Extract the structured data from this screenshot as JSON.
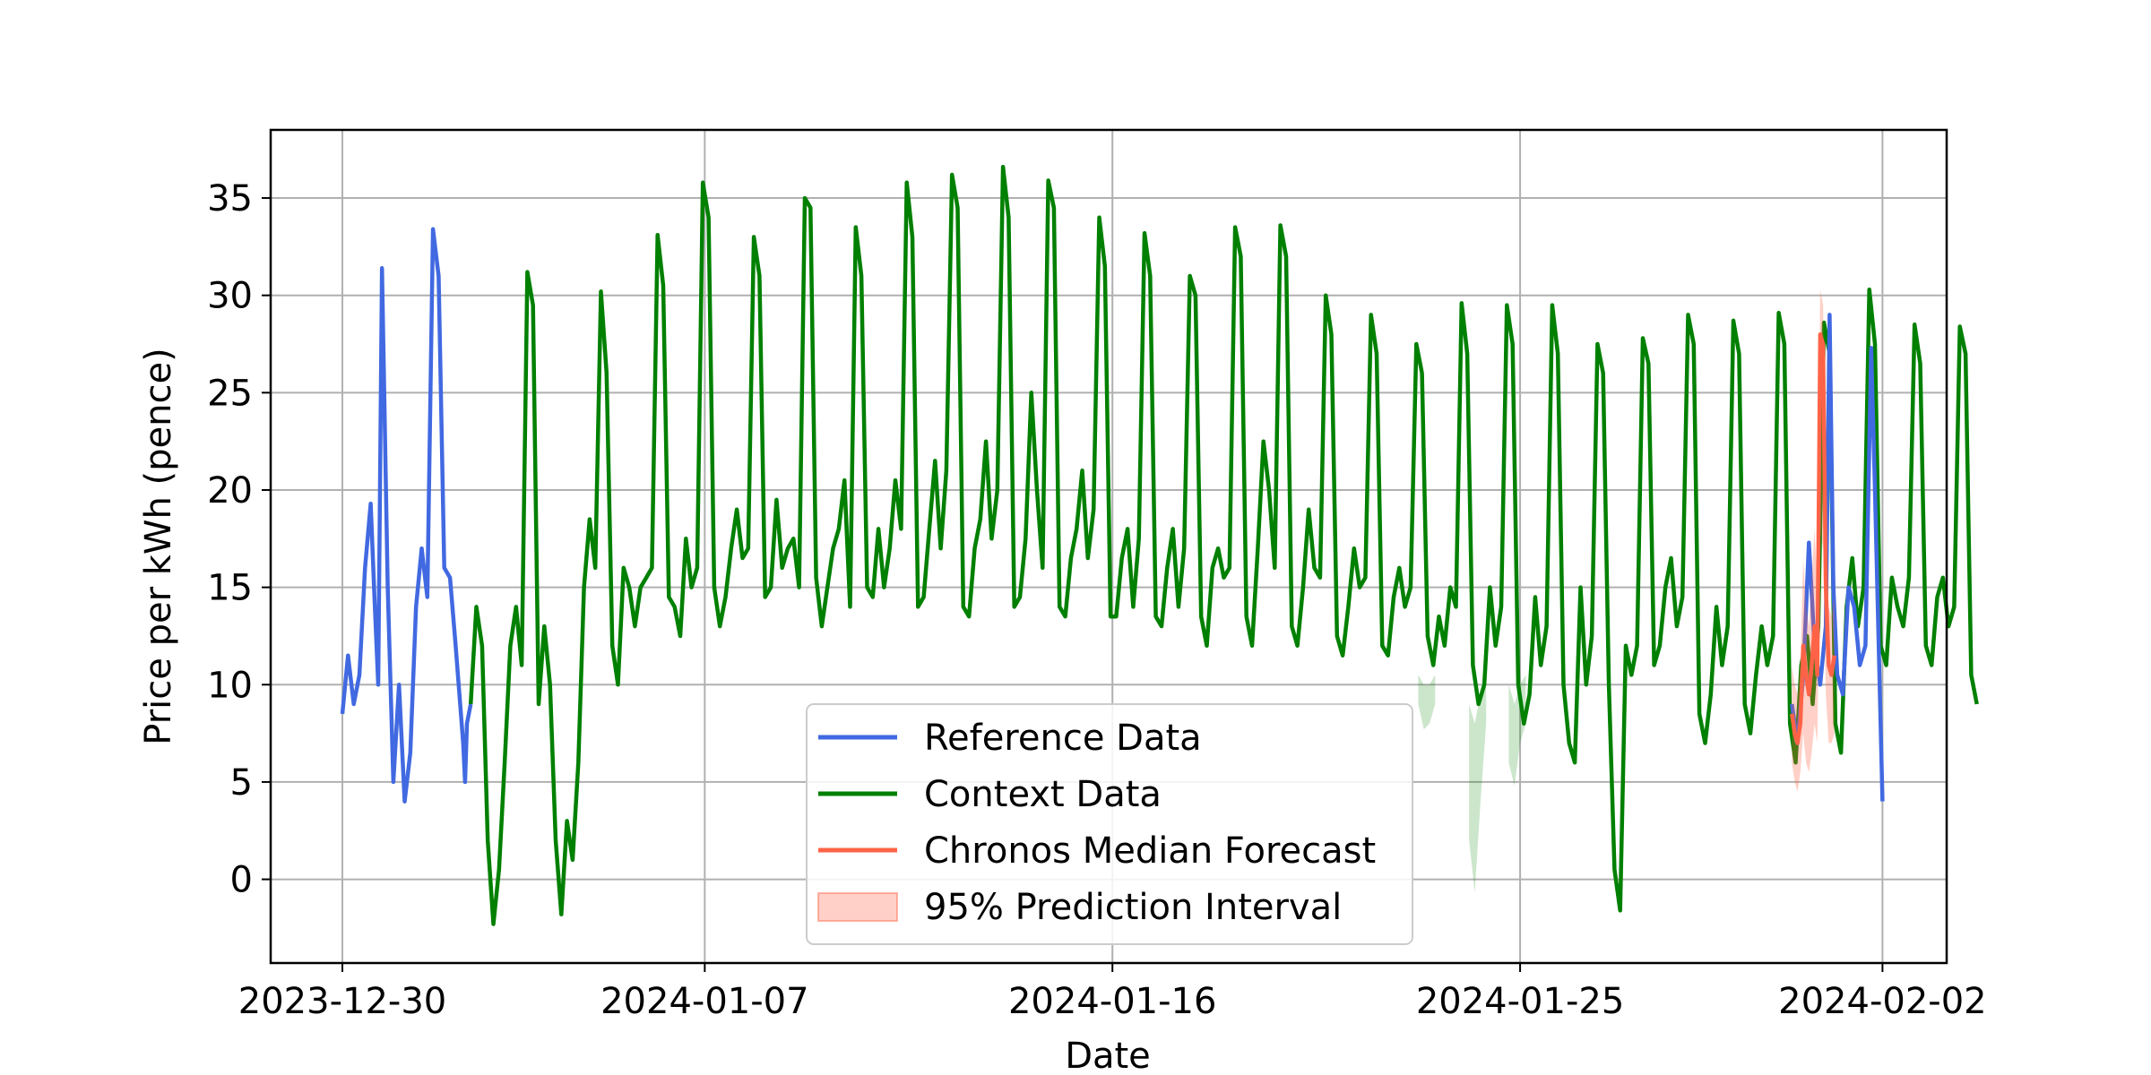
{
  "chart_data": {
    "type": "line",
    "xlabel": "Date",
    "ylabel": "Price per kWh (pence)",
    "xlim": [
      "2023-12-28T10:00",
      "2024-02-03T10:00"
    ],
    "ylim": [
      -4.3,
      38.5
    ],
    "x_ticks": [
      "2023-12-30",
      "2024-01-07",
      "2024-01-16",
      "2024-01-25",
      "2024-02-02"
    ],
    "y_ticks": [
      0,
      5,
      10,
      15,
      20,
      25,
      30,
      35
    ],
    "grid": true,
    "legend_position": "bottom-center",
    "colors": {
      "reference": "#4169E1",
      "context": "#008000",
      "forecast": "#FF6347",
      "interval": "#FF6347"
    },
    "series": [
      {
        "name": "Reference Data",
        "role": "reference",
        "segments": [
          {
            "x": [
              "2023-12-30T00:00",
              "2023-12-30T03:00",
              "2023-12-30T06:00",
              "2023-12-30T09:00",
              "2023-12-30T12:00",
              "2023-12-30T15:00",
              "2023-12-30T17:00",
              "2023-12-30T19:00",
              "2023-12-30T21:00",
              "2023-12-31T00:00",
              "2023-12-31T03:00",
              "2023-12-31T06:00",
              "2023-12-31T09:00",
              "2023-12-31T12:00",
              "2023-12-31T15:00",
              "2023-12-31T18:00",
              "2023-12-31T21:00",
              "2024-01-01T00:00",
              "2024-01-01T03:00",
              "2024-01-01T06:00",
              "2024-01-01T09:00",
              "2024-01-01T12:00",
              "2024-01-01T16:00",
              "2024-01-01T17:00",
              "2024-01-01T18:00",
              "2024-01-01T20:00"
            ],
            "y": [
              8.5,
              11.5,
              9.0,
              10.5,
              16.0,
              19.3,
              14.5,
              10.0,
              31.4,
              15.0,
              5.0,
              10.0,
              4.0,
              6.5,
              14.0,
              17.0,
              14.5,
              33.4,
              31.0,
              16.0,
              15.5,
              12.0,
              7.0,
              5.0,
              8.0,
              9.0
            ]
          },
          {
            "x": [
              "2024-01-31T00:00",
              "2024-01-31T03:00",
              "2024-01-31T06:00",
              "2024-01-31T09:00",
              "2024-01-31T12:00",
              "2024-01-31T15:00",
              "2024-01-31T18:00",
              "2024-01-31T20:00",
              "2024-01-31T22:00",
              "2024-02-01T00:00",
              "2024-02-01T03:00",
              "2024-02-01T06:00",
              "2024-02-01T09:00",
              "2024-02-01T12:00",
              "2024-02-01T15:00",
              "2024-02-01T18:00",
              "2024-02-01T20:00",
              "2024-02-01T22:00",
              "2024-02-02T00:00"
            ],
            "y": [
              9.0,
              7.0,
              10.5,
              17.3,
              12.0,
              10.0,
              13.0,
              29.0,
              15.0,
              10.5,
              9.5,
              15.0,
              14.0,
              11.0,
              12.0,
              27.3,
              20.0,
              12.0,
              4.0
            ]
          }
        ]
      },
      {
        "name": "Context Data",
        "role": "context",
        "x_start": "2024-01-01T20:00",
        "x_step_hours": 3,
        "y": [
          9.0,
          14.0,
          12.0,
          2.0,
          -2.3,
          0.5,
          6.0,
          12.0,
          14.0,
          11.0,
          31.2,
          29.5,
          9.0,
          13.0,
          10.0,
          2.0,
          -1.8,
          3.0,
          1.0,
          6.0,
          15.0,
          18.5,
          16.0,
          30.2,
          26.0,
          12.0,
          10.0,
          16.0,
          15.0,
          13.0,
          15.0,
          15.5,
          16.0,
          33.1,
          30.5,
          14.5,
          14.0,
          12.5,
          17.5,
          15.0,
          16.0,
          35.8,
          34.0,
          15.0,
          13.0,
          14.5,
          17.0,
          19.0,
          16.5,
          17.0,
          33.0,
          31.0,
          14.5,
          15.0,
          19.5,
          16.0,
          17.0,
          17.5,
          15.0,
          35.0,
          34.5,
          15.5,
          13.0,
          15.0,
          17.0,
          18.0,
          20.5,
          14.0,
          33.5,
          31.0,
          15.0,
          14.5,
          18.0,
          15.0,
          17.0,
          20.5,
          18.0,
          35.8,
          33.0,
          14.0,
          14.5,
          18.0,
          21.5,
          17.0,
          21.0,
          36.2,
          34.5,
          14.0,
          13.5,
          17.0,
          18.5,
          22.5,
          17.5,
          20.0,
          36.6,
          34.0,
          14.0,
          14.5,
          17.5,
          25.0,
          20.0,
          16.0,
          35.9,
          34.5,
          14.0,
          13.5,
          16.5,
          18.0,
          21.0,
          16.5,
          19.0,
          34.0,
          31.5,
          13.5,
          13.5,
          16.5,
          18.0,
          14.0,
          17.5,
          33.2,
          31.0,
          13.5,
          13.0,
          16.0,
          18.0,
          14.0,
          17.0,
          31.0,
          30.0,
          13.5,
          12.0,
          16.0,
          17.0,
          15.5,
          16.0,
          33.5,
          32.0,
          13.5,
          12.0,
          17.0,
          22.5,
          20.0,
          16.0,
          33.6,
          32.0,
          13.0,
          12.0,
          15.0,
          19.0,
          16.0,
          15.5,
          30.0,
          28.0,
          12.5,
          11.5,
          14.0,
          17.0,
          15.0,
          15.5,
          29.0,
          27.0,
          12.0,
          11.5,
          14.5,
          16.0,
          14.0,
          15.0,
          27.5,
          26.0,
          12.5,
          11.0,
          13.5,
          12.0,
          15.0,
          14.0,
          29.6,
          27.0,
          11.0,
          9.0,
          10.0,
          15.0,
          12.0,
          14.0,
          29.5,
          27.5,
          10.0,
          8.0,
          9.5,
          14.5,
          11.0,
          13.0,
          29.5,
          27.0,
          10.0,
          7.0,
          6.0,
          15.0,
          10.0,
          12.5,
          27.5,
          26.0,
          10.0,
          0.5,
          -1.6,
          12.0,
          10.5,
          12.0,
          27.8,
          26.5,
          11.0,
          12.0,
          15.0,
          16.5,
          13.0,
          14.5,
          29.0,
          27.5,
          8.5,
          7.0,
          9.5,
          14.0,
          11.0,
          13.0,
          28.7,
          27.0,
          9.0,
          7.5,
          10.5,
          13.0,
          11.0,
          12.5,
          29.1,
          27.5,
          8.0,
          6.0,
          11.0,
          12.5,
          9.0,
          13.0,
          28.6,
          27.0,
          8.0,
          6.5,
          14.0,
          16.5,
          13.0,
          15.0,
          30.3,
          27.5,
          12.0,
          11.0,
          15.5,
          14.0,
          13.0,
          15.5,
          28.5,
          26.5,
          12.0,
          11.0,
          14.5,
          15.5,
          13.0,
          14.0,
          28.4,
          27.0,
          10.5,
          9.0
        ]
      },
      {
        "name": "Chronos Median Forecast",
        "role": "forecast",
        "x_start": "2024-01-31T00:00",
        "x_step_hours": 1.5,
        "y": [
          8.5,
          7.5,
          7.0,
          8.0,
          12.0,
          10.5,
          9.5,
          11.0,
          13.0,
          10.5,
          28.0,
          27.5,
          15.0,
          11.0,
          10.5,
          11.5
        ]
      }
    ],
    "interval": {
      "name": "95% Prediction Interval",
      "x_start": "2024-01-31T00:00",
      "x_step_hours": 1.5,
      "lower": [
        6.0,
        5.0,
        4.5,
        5.5,
        7.5,
        6.0,
        5.5,
        6.5,
        8.0,
        7.0,
        18.0,
        17.0,
        9.5,
        7.0,
        7.0,
        7.5
      ],
      "upper": [
        11.0,
        10.0,
        9.5,
        11.0,
        16.5,
        14.0,
        13.0,
        15.5,
        18.0,
        15.0,
        30.3,
        29.5,
        19.0,
        14.0,
        13.5,
        14.5
      ]
    },
    "faded_patches": [
      {
        "x_start": "2024-01-22T18:00",
        "x_step_hours": 3,
        "lower": [
          9.0,
          7.7,
          8.0,
          9.0
        ],
        "upper": [
          10.5,
          10.0,
          10.0,
          10.5
        ]
      },
      {
        "x_start": "2024-01-23T21:00",
        "x_step_hours": 3,
        "lower": [
          2.0,
          -0.7,
          4.0,
          8.0
        ],
        "upper": [
          9.0,
          8.0,
          9.5,
          10.5
        ]
      },
      {
        "x_start": "2024-01-24T18:00",
        "x_step_hours": 3,
        "lower": [
          6.0,
          4.8,
          7.0,
          8.0
        ],
        "upper": [
          10.0,
          9.0,
          10.0,
          10.5
        ]
      }
    ]
  }
}
